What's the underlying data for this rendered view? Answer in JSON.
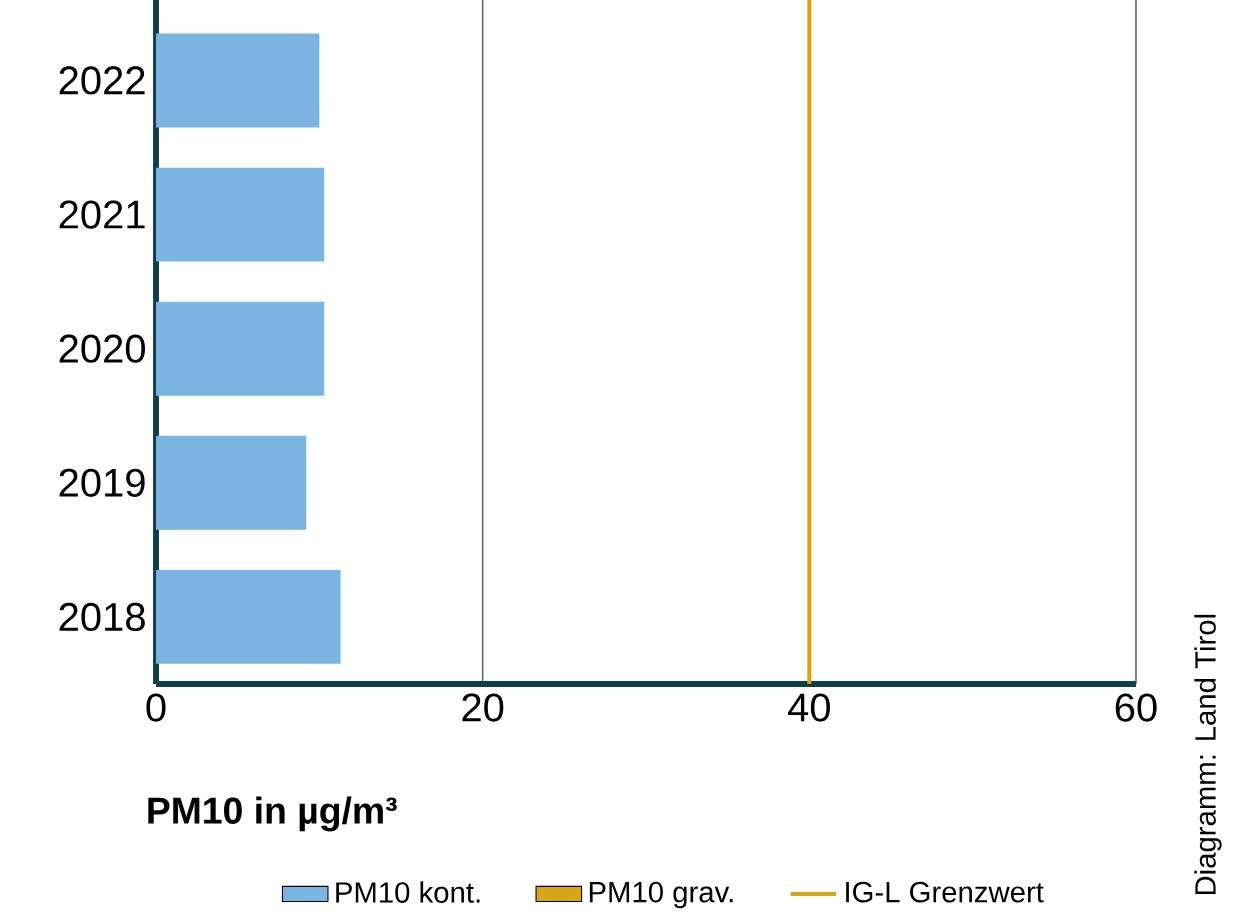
{
  "chart_data": {
    "type": "bar",
    "orientation": "horizontal",
    "xlabel": "PM10 in µg/m³",
    "categories": [
      "2022",
      "2021",
      "2020",
      "2019",
      "2018"
    ],
    "series": [
      {
        "name": "PM10 kont.",
        "color": "#7ab4e0",
        "values": [
          10.0,
          10.3,
          10.3,
          9.2,
          11.3
        ]
      },
      {
        "name": "PM10 grav.",
        "color": "#d6a614",
        "values": [
          null,
          null,
          null,
          null,
          null
        ]
      }
    ],
    "xlim": [
      0,
      60
    ],
    "xticks": [
      0,
      20,
      40,
      60
    ],
    "grid": "x",
    "legend": "bottom",
    "ref_lines": [
      {
        "axis": "x",
        "value": 40,
        "label": "IG-L Grenzwert",
        "color": "#d6a614"
      }
    ],
    "annotations": [
      "Diagramm: Land Tirol"
    ]
  }
}
